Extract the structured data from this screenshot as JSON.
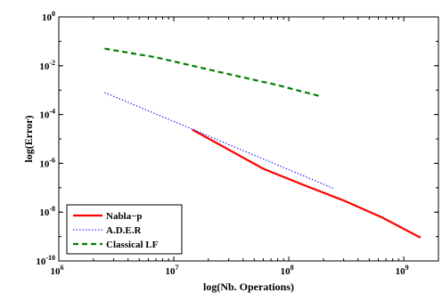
{
  "chart_data": {
    "type": "line",
    "title": "",
    "xlabel": "log(Nb. Operations)",
    "ylabel": "log(Error)",
    "xscale": "log",
    "yscale": "log",
    "xlim": [
      1000000,
      2000000000
    ],
    "ylim": [
      1e-10,
      1
    ],
    "grid": false,
    "legend_position": "bottom-left",
    "x_ticks": [
      {
        "value": 1000000,
        "base": "10",
        "exp": "6"
      },
      {
        "value": 10000000,
        "base": "10",
        "exp": "7"
      },
      {
        "value": 100000000,
        "base": "10",
        "exp": "8"
      },
      {
        "value": 1000000000,
        "base": "10",
        "exp": "9"
      }
    ],
    "y_ticks": [
      {
        "value": 1e-10,
        "base": "10",
        "exp": "-10"
      },
      {
        "value": 1e-08,
        "base": "10",
        "exp": "-8"
      },
      {
        "value": 1e-06,
        "base": "10",
        "exp": "-6"
      },
      {
        "value": 0.0001,
        "base": "10",
        "exp": "-4"
      },
      {
        "value": 0.01,
        "base": "10",
        "exp": "-2"
      },
      {
        "value": 1,
        "base": "10",
        "exp": "0"
      }
    ],
    "series": [
      {
        "name": "Nabla−p",
        "color": "#ff0000",
        "dash": "solid",
        "x": [
          14500000,
          60000000,
          140000000,
          300000000,
          650000000,
          1400000000
        ],
        "y": [
          2.4e-05,
          6e-07,
          1.2e-07,
          3e-08,
          6e-09,
          9e-10
        ]
      },
      {
        "name": "A.D.E.R",
        "color": "#0000ff",
        "dash": "dotted",
        "x": [
          2500000,
          14500000,
          250000000
        ],
        "y": [
          0.0008,
          2.5e-05,
          9e-08
        ]
      },
      {
        "name": "Classical LF",
        "color": "#008000",
        "dash": "dashed",
        "x": [
          2500000,
          7000000,
          25000000,
          80000000,
          190000000
        ],
        "y": [
          0.05,
          0.022,
          0.0055,
          0.0016,
          0.00055
        ]
      }
    ]
  }
}
